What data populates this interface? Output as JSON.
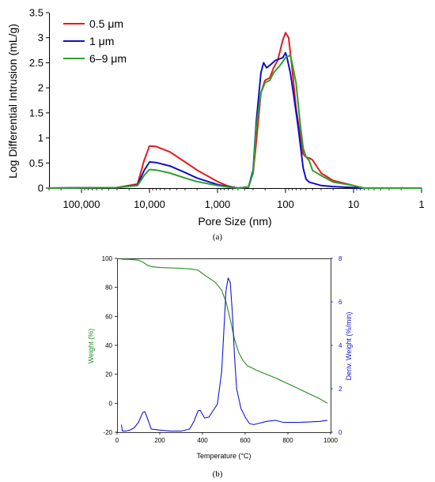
{
  "chart_data": [
    {
      "type": "line",
      "panel_label": "(a)",
      "xlabel": "Pore Size (nm)",
      "ylabel": "Log Differential Intrusion (mL/g)",
      "x_scale": "log-reversed",
      "xlim": [
        300000,
        1
      ],
      "ylim": [
        0,
        3.5
      ],
      "x_ticks": [
        100000,
        10000,
        1000,
        100,
        10,
        1
      ],
      "x_tick_labels": [
        "100,000",
        "10,000",
        "1,000",
        "100",
        "10",
        "1"
      ],
      "y_ticks": [
        0,
        0.5,
        1,
        1.5,
        2,
        2.5,
        3,
        3.5
      ],
      "y_tick_labels": [
        "0",
        "0.5",
        "1",
        "1.5",
        "2",
        "2.5",
        "3",
        "3.5"
      ],
      "legend_position": "top-left",
      "series": [
        {
          "name": "0.5 μm",
          "color": "#e41a1c",
          "points": [
            [
              300000,
              0
            ],
            [
              30000,
              0.01
            ],
            [
              15000,
              0.08
            ],
            [
              12000,
              0.55
            ],
            [
              10000,
              0.84
            ],
            [
              8000,
              0.83
            ],
            [
              5000,
              0.72
            ],
            [
              3000,
              0.52
            ],
            [
              2000,
              0.36
            ],
            [
              1000,
              0.13
            ],
            [
              700,
              0.04
            ],
            [
              500,
              0
            ],
            [
              350,
              0.02
            ],
            [
              300,
              0.3
            ],
            [
              270,
              0.9
            ],
            [
              230,
              1.9
            ],
            [
              200,
              2.15
            ],
            [
              170,
              2.2
            ],
            [
              150,
              2.4
            ],
            [
              130,
              2.55
            ],
            [
              110,
              2.95
            ],
            [
              100,
              3.1
            ],
            [
              90,
              3.0
            ],
            [
              80,
              2.4
            ],
            [
              70,
              1.6
            ],
            [
              60,
              1.0
            ],
            [
              55,
              0.68
            ],
            [
              50,
              0.62
            ],
            [
              45,
              0.6
            ],
            [
              40,
              0.56
            ],
            [
              30,
              0.3
            ],
            [
              20,
              0.15
            ],
            [
              10,
              0.05
            ],
            [
              8,
              0
            ],
            [
              1,
              0
            ]
          ]
        },
        {
          "name": "1 μm",
          "color": "#1010c8",
          "points": [
            [
              300000,
              0
            ],
            [
              30000,
              0.01
            ],
            [
              15000,
              0.06
            ],
            [
              12000,
              0.35
            ],
            [
              10000,
              0.52
            ],
            [
              8000,
              0.51
            ],
            [
              5000,
              0.44
            ],
            [
              3000,
              0.31
            ],
            [
              2000,
              0.2
            ],
            [
              1000,
              0.07
            ],
            [
              700,
              0.03
            ],
            [
              500,
              0
            ],
            [
              350,
              0.02
            ],
            [
              300,
              0.35
            ],
            [
              270,
              1.3
            ],
            [
              230,
              2.3
            ],
            [
              210,
              2.5
            ],
            [
              190,
              2.4
            ],
            [
              170,
              2.45
            ],
            [
              140,
              2.55
            ],
            [
              110,
              2.6
            ],
            [
              100,
              2.7
            ],
            [
              95,
              2.6
            ],
            [
              85,
              2.3
            ],
            [
              75,
              1.8
            ],
            [
              65,
              1.2
            ],
            [
              55,
              0.4
            ],
            [
              50,
              0.18
            ],
            [
              45,
              0.12
            ],
            [
              40,
              0.1
            ],
            [
              30,
              0.05
            ],
            [
              20,
              0.03
            ],
            [
              10,
              0.01
            ],
            [
              8,
              0
            ],
            [
              1,
              0
            ]
          ]
        },
        {
          "name": "6–9 μm",
          "color": "#2ca02c",
          "points": [
            [
              300000,
              0
            ],
            [
              30000,
              0.01
            ],
            [
              15000,
              0.05
            ],
            [
              12000,
              0.25
            ],
            [
              10000,
              0.37
            ],
            [
              8000,
              0.36
            ],
            [
              5000,
              0.3
            ],
            [
              3000,
              0.2
            ],
            [
              2000,
              0.13
            ],
            [
              1000,
              0.05
            ],
            [
              700,
              0.02
            ],
            [
              500,
              0
            ],
            [
              350,
              0.02
            ],
            [
              300,
              0.3
            ],
            [
              270,
              1.2
            ],
            [
              230,
              1.9
            ],
            [
              200,
              2.1
            ],
            [
              170,
              2.15
            ],
            [
              150,
              2.3
            ],
            [
              120,
              2.45
            ],
            [
              100,
              2.6
            ],
            [
              85,
              2.65
            ],
            [
              80,
              2.5
            ],
            [
              70,
              2.1
            ],
            [
              60,
              1.2
            ],
            [
              55,
              0.8
            ],
            [
              50,
              0.62
            ],
            [
              45,
              0.55
            ],
            [
              40,
              0.35
            ],
            [
              30,
              0.25
            ],
            [
              20,
              0.12
            ],
            [
              10,
              0.05
            ],
            [
              7,
              0
            ],
            [
              1,
              0
            ]
          ]
        }
      ]
    },
    {
      "type": "line",
      "panel_label": "(b)",
      "xlabel": "Temperature (°C)",
      "ylabel": "Weight (%)",
      "y2label": "Deriv. Weight (%/min)",
      "xlim": [
        0,
        1000
      ],
      "ylim": [
        -20,
        100
      ],
      "y2lim": [
        0,
        8
      ],
      "x_ticks": [
        0,
        200,
        400,
        600,
        800,
        1000
      ],
      "y_ticks": [
        -20,
        0,
        20,
        40,
        60,
        80,
        100
      ],
      "y2_ticks": [
        0,
        2,
        4,
        6,
        8
      ],
      "series": [
        {
          "name": "Weight",
          "axis": "left",
          "color": "#1e8c1e",
          "points": [
            [
              20,
              99.5
            ],
            [
              60,
              99.3
            ],
            [
              100,
              98.8
            ],
            [
              120,
              97.5
            ],
            [
              140,
              95.5
            ],
            [
              160,
              94.3
            ],
            [
              200,
              93.7
            ],
            [
              300,
              93.2
            ],
            [
              350,
              92.7
            ],
            [
              380,
              91.8
            ],
            [
              400,
              89.5
            ],
            [
              430,
              86.5
            ],
            [
              460,
              83.5
            ],
            [
              490,
              78
            ],
            [
              510,
              70
            ],
            [
              530,
              58
            ],
            [
              550,
              44
            ],
            [
              570,
              35
            ],
            [
              590,
              29.5
            ],
            [
              610,
              26
            ],
            [
              630,
              24.5
            ],
            [
              650,
              23
            ],
            [
              700,
              20
            ],
            [
              750,
              17
            ],
            [
              800,
              13.5
            ],
            [
              850,
              10
            ],
            [
              900,
              6.5
            ],
            [
              950,
              3
            ],
            [
              985,
              0
            ]
          ]
        },
        {
          "name": "Deriv. Weight",
          "axis": "right",
          "color": "#1515d6",
          "points": [
            [
              20,
              0.35
            ],
            [
              25,
              0.05
            ],
            [
              40,
              0.05
            ],
            [
              60,
              0.1
            ],
            [
              80,
              0.2
            ],
            [
              100,
              0.45
            ],
            [
              120,
              0.9
            ],
            [
              130,
              0.95
            ],
            [
              140,
              0.7
            ],
            [
              160,
              0.15
            ],
            [
              200,
              0.1
            ],
            [
              250,
              0.05
            ],
            [
              300,
              0.05
            ],
            [
              340,
              0.15
            ],
            [
              360,
              0.5
            ],
            [
              380,
              1.0
            ],
            [
              390,
              1.0
            ],
            [
              410,
              0.65
            ],
            [
              430,
              0.7
            ],
            [
              450,
              1.0
            ],
            [
              470,
              1.3
            ],
            [
              490,
              2.8
            ],
            [
              510,
              6.5
            ],
            [
              520,
              7.1
            ],
            [
              530,
              6.9
            ],
            [
              540,
              5.5
            ],
            [
              550,
              3.5
            ],
            [
              560,
              2.0
            ],
            [
              580,
              1.1
            ],
            [
              600,
              0.7
            ],
            [
              620,
              0.4
            ],
            [
              640,
              0.35
            ],
            [
              660,
              0.4
            ],
            [
              700,
              0.5
            ],
            [
              740,
              0.55
            ],
            [
              780,
              0.45
            ],
            [
              850,
              0.45
            ],
            [
              950,
              0.5
            ],
            [
              985,
              0.55
            ]
          ]
        }
      ]
    }
  ]
}
